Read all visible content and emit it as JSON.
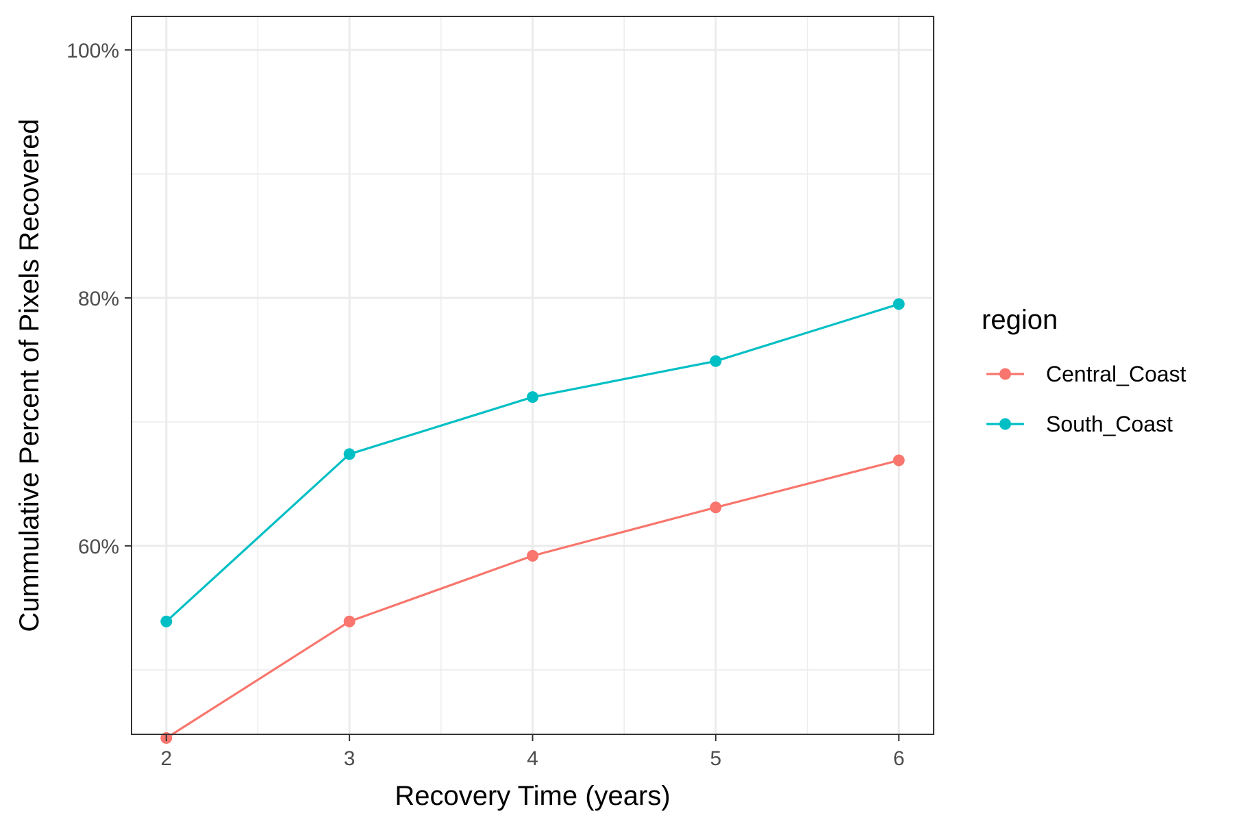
{
  "chart_data": {
    "type": "line",
    "title": "",
    "xlabel": "Recovery Time (years)",
    "ylabel": "Cummulative Percent of Pixels Recovered",
    "x": [
      2,
      3,
      4,
      5,
      6
    ],
    "x_ticks": [
      "2",
      "3",
      "4",
      "5",
      "6"
    ],
    "y_ticks": [
      "60%",
      "80%",
      "100%"
    ],
    "y_tick_values": [
      60,
      80,
      100
    ],
    "xlim": [
      1.81,
      6.19
    ],
    "ylim": [
      44.8,
      102.7
    ],
    "grid": true,
    "legend": {
      "title": "region",
      "position": "right"
    },
    "series": [
      {
        "name": "Central_Coast",
        "color": "#F8766D",
        "values": [
          44.5,
          53.9,
          59.2,
          63.1,
          66.9
        ]
      },
      {
        "name": "South_Coast",
        "color": "#00BFC4",
        "values": [
          53.9,
          67.4,
          72.0,
          74.9,
          79.5
        ]
      }
    ]
  }
}
